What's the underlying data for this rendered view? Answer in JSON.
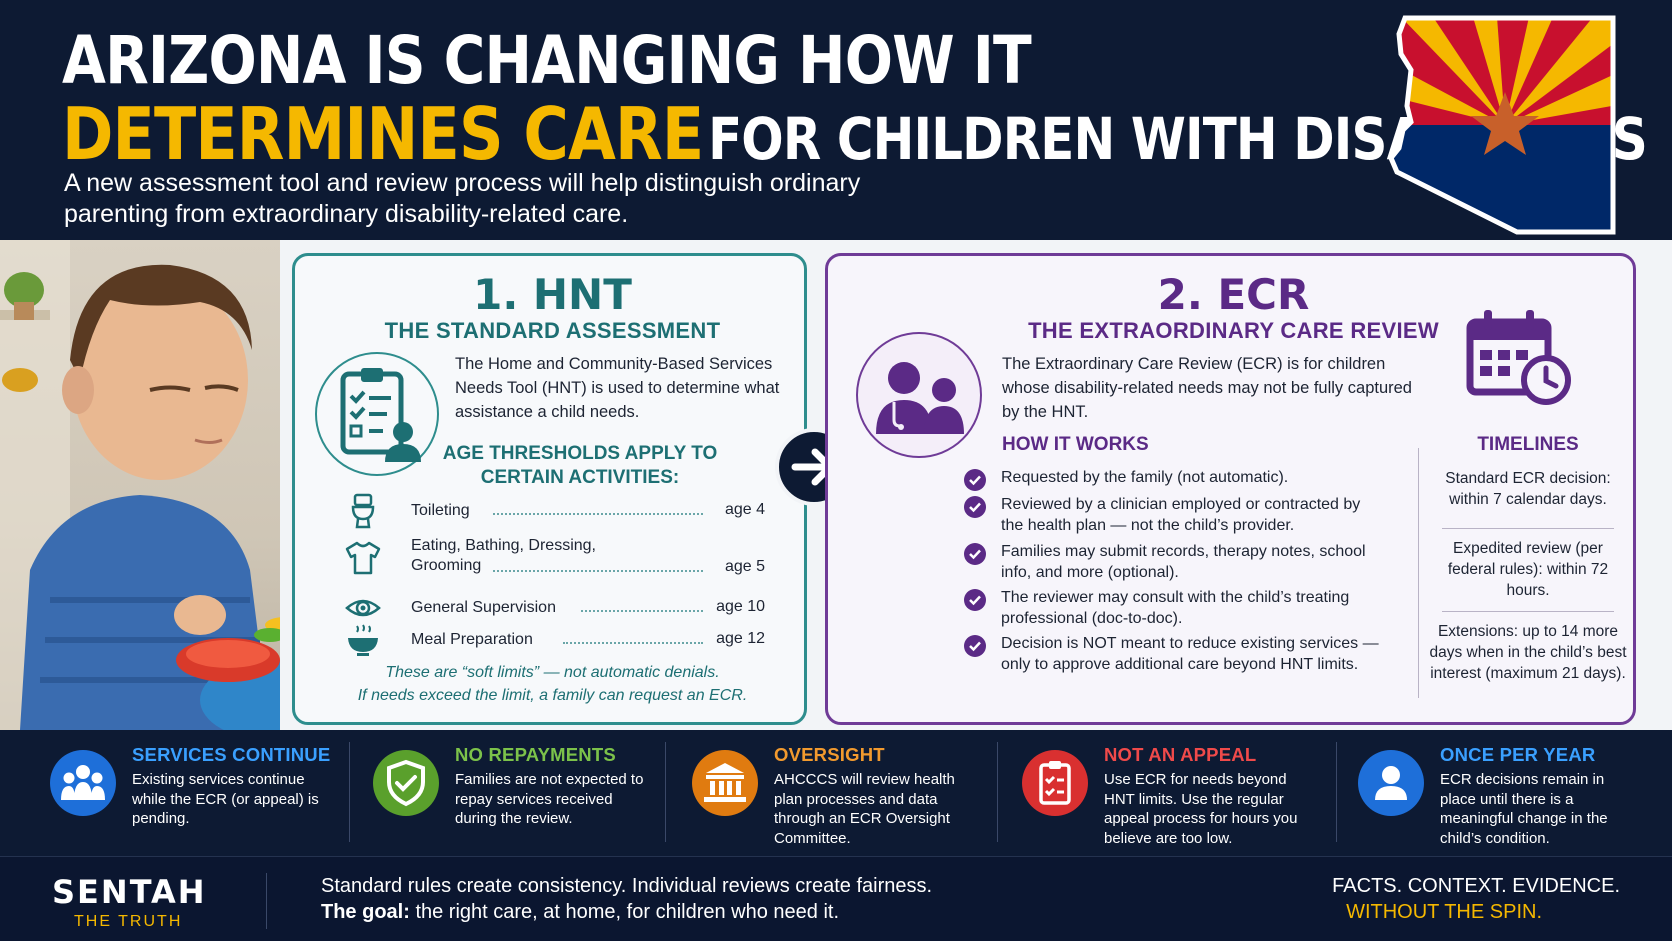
{
  "header": {
    "title_line1": "ARIZONA IS CHANGING HOW IT",
    "title_accent": "DETERMINES CARE",
    "title_rest": "FOR CHILDREN WITH DISABILITIES",
    "subtitle": "A new assessment tool and review process will help distinguish ordinary parenting from extraordinary disability-related care."
  },
  "hnt": {
    "number": "1. HNT",
    "subtitle": "THE STANDARD ASSESSMENT",
    "description": "The Home and Community-Based Services Needs Tool (HNT) is used to determine what assistance a child needs.",
    "age_heading_1": "AGE THRESHOLDS APPLY TO",
    "age_heading_2": "CERTAIN ACTIVITIES:",
    "activities": [
      {
        "label": "Toileting",
        "age": "age 4",
        "icon": "toilet-icon"
      },
      {
        "label_1": "Eating, Bathing, Dressing,",
        "label_2": "Grooming",
        "age": "age 5",
        "icon": "shirt-icon"
      },
      {
        "label": "General Supervision",
        "age": "age 10",
        "icon": "eye-icon"
      },
      {
        "label": "Meal Preparation",
        "age": "age 12",
        "icon": "bowl-icon"
      }
    ],
    "note_1": "These are “soft limits” — not automatic denials.",
    "note_2": "If needs exceed the limit, a family can request an ECR."
  },
  "ecr": {
    "number": "2. ECR",
    "subtitle": "THE EXTRAORDINARY CARE REVIEW",
    "description": "The Extraordinary Care Review (ECR) is for children whose disability-related needs may not be fully captured by the HNT.",
    "how_heading": "HOW IT WORKS",
    "steps": [
      "Requested by the family (not automatic).",
      "Reviewed by a clinician employed or contracted by the health plan — not the child’s provider.",
      "Families may submit records, therapy notes, school info, and more (optional).",
      "The reviewer may consult with the child’s treating professional (doc-to-doc).",
      "Decision is NOT meant to reduce existing services — only to approve additional care beyond HNT limits."
    ],
    "timelines_heading": "TIMELINES",
    "timelines": [
      "Standard ECR decision: within 7 calendar days.",
      "Expedited review (per federal rules): within 72 hours.",
      "Extensions: up to 14 more days when in the child’s best interest (maximum 21 days)."
    ]
  },
  "features": [
    {
      "title": "SERVICES CONTINUE",
      "text": "Existing services continue while the ECR (or appeal) is pending.",
      "color": "#1e6fd9",
      "title_color": "#3aa0ff",
      "icon": "family-icon"
    },
    {
      "title": "NO REPAYMENTS",
      "text": "Families are not expected to repay services received during the review.",
      "color": "#5aa02c",
      "title_color": "#7cc24a",
      "icon": "shield-check-icon"
    },
    {
      "title": "OVERSIGHT",
      "text": "AHCCCS will review health plan processes and data through an ECR Oversight Committee.",
      "color": "#e07b10",
      "title_color": "#f29a2e",
      "icon": "building-icon"
    },
    {
      "title": "NOT AN APPEAL",
      "text": "Use ECR for needs beyond HNT limits. Use the regular appeal process for hours you believe are too low.",
      "color": "#d93030",
      "title_color": "#f04a4a",
      "icon": "clipboard-icon"
    },
    {
      "title": "ONCE PER YEAR",
      "text": "ECR decisions remain in place until there is a meaningful change in the child’s condition.",
      "color": "#1e6fd9",
      "title_color": "#3aa0ff",
      "icon": "person-icon"
    }
  ],
  "footer": {
    "brand": "SENTAH",
    "brand_sub": "THE TRUTH",
    "line1": "Standard rules create consistency. Individual reviews create fairness.",
    "line2_bold": "The goal:",
    "line2_rest": " the right care, at home, for children who need it.",
    "tagline1": "FACTS. CONTEXT. EVIDENCE.",
    "tagline2": "WITHOUT THE SPIN."
  },
  "colors": {
    "navy": "#0d1a33",
    "gold": "#f5b800",
    "teal": "#1d6f73",
    "purple": "#5b2a86"
  }
}
